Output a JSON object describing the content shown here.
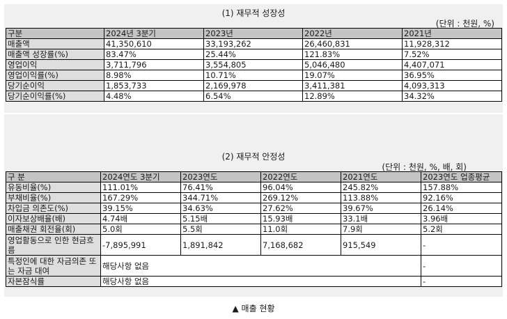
{
  "growth": {
    "title": "(1) 재무적 성장성",
    "unit": "(단위 : 천원, %)",
    "headers": [
      "구분",
      "2024년 3분기",
      "2023년",
      "2022년",
      "2021년"
    ],
    "rows": [
      [
        "매출액",
        "41,350,610",
        "33,193,262",
        "26,460,831",
        "11,928,312"
      ],
      [
        "매출액 성장률(%)",
        "83.47%",
        "25.44%",
        "121.83%",
        "7.52%"
      ],
      [
        "영업이익",
        "3,711,796",
        "3,554,805",
        "5,046,480",
        "4,407,071"
      ],
      [
        "영업이익률(%)",
        "8.98%",
        "10.71%",
        "19.07%",
        "36.95%"
      ],
      [
        "당기순이익",
        "1,853,733",
        "2,169,978",
        "3,411,381",
        "4,093,313"
      ],
      [
        "당기순이익률(%)",
        "4.48%",
        "6.54%",
        "12.89%",
        "34.32%"
      ]
    ]
  },
  "stability": {
    "title": "(2) 재무적 안정성",
    "unit": "(단위 : 천원, %, 배, 회)",
    "headers": [
      "구 분",
      "2024연도 3분기",
      "2023연도",
      "2022연도",
      "2021연도",
      "2023연도 업종평균"
    ],
    "rows": [
      [
        "유동비율(%)",
        "111.01%",
        "76.41%",
        "96.04%",
        "245.82%",
        "157.88%"
      ],
      [
        "부채비율(%)",
        "167.29%",
        "344.71%",
        "269.12%",
        "113.88%",
        "92.16%"
      ],
      [
        "차입금 의존도(%)",
        "39.15%",
        "34.63%",
        "27.62%",
        "39.67%",
        "26.14%"
      ],
      [
        "이자보상배율(배)",
        "4.74배",
        "5.15배",
        "15.93배",
        "33.1배",
        "3.96배"
      ],
      [
        "매출채권 회전율(회)",
        "5.0회",
        "5.5회",
        "11.0회",
        "7.9회",
        "5.2회"
      ],
      [
        "영업활동으로 인한 현금흐름",
        "-7,895,991",
        "1,891,842",
        "7,168,682",
        "915,549",
        "-"
      ]
    ],
    "special_rows": [
      {
        "label": "특정인에 대한 자금의존 또는 자금 대여",
        "value": "해당사항 없음",
        "avg": "-"
      },
      {
        "label": "자본잠식률",
        "value": "해당사항 없음",
        "avg": "-"
      }
    ]
  },
  "caption": "▲ 매출 현황"
}
